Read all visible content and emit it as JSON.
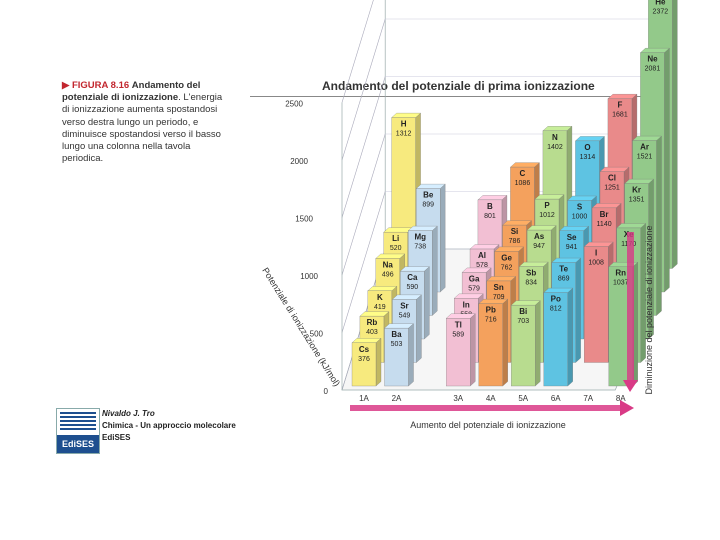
{
  "caption": {
    "figure_label": "FIGURA 8.16",
    "figure_title": "Andamento del potenziale di ionizzazione",
    "figure_body": ". L'energia di ionizzazione aumenta spostandosi verso destra lungo un periodo, e diminuisce spostandosi verso il basso lungo una colonna nella tavola periodica."
  },
  "chart_data": {
    "type": "bar",
    "title": "Andamento del potenziale di prima ionizzazione",
    "zlabel": "Potenziale di ionizzazione (kJ/mol)",
    "zlim": [
      0,
      2500
    ],
    "z_ticks": [
      "0",
      "500",
      "1000",
      "1500",
      "2000",
      "2500"
    ],
    "groups": [
      "1A",
      "2A",
      "3A",
      "4A",
      "5A",
      "6A",
      "7A",
      "8A"
    ],
    "x_axis_label": "Aumento del potenziale di ionizzazione",
    "y_axis_label": "Diminuzione del potenziale di ionizzazione",
    "series": [
      {
        "group": "1A",
        "color": "#f7ea7e",
        "elements": [
          {
            "symbol": "H",
            "value": 1312
          },
          {
            "symbol": "Li",
            "value": 520
          },
          {
            "symbol": "Na",
            "value": 496
          },
          {
            "symbol": "K",
            "value": 419
          },
          {
            "symbol": "Rb",
            "value": 403
          },
          {
            "symbol": "Cs",
            "value": 376
          }
        ]
      },
      {
        "group": "2A",
        "color": "#c6dcee",
        "elements": [
          {
            "symbol": "Be",
            "value": 899
          },
          {
            "symbol": "Mg",
            "value": 738
          },
          {
            "symbol": "Ca",
            "value": 590
          },
          {
            "symbol": "Sr",
            "value": 549
          },
          {
            "symbol": "Ba",
            "value": 503
          }
        ]
      },
      {
        "group": "3A",
        "color": "#f2bfd3",
        "elements": [
          {
            "symbol": "B",
            "value": 801
          },
          {
            "symbol": "Al",
            "value": 578
          },
          {
            "symbol": "Ga",
            "value": 579
          },
          {
            "symbol": "In",
            "value": 558
          },
          {
            "symbol": "Tl",
            "value": 589
          }
        ]
      },
      {
        "group": "4A",
        "color": "#f4a15d",
        "elements": [
          {
            "symbol": "C",
            "value": 1086
          },
          {
            "symbol": "Si",
            "value": 786
          },
          {
            "symbol": "Ge",
            "value": 762
          },
          {
            "symbol": "Sn",
            "value": 709
          },
          {
            "symbol": "Pb",
            "value": 716
          }
        ]
      },
      {
        "group": "5A",
        "color": "#b8dc8f",
        "elements": [
          {
            "symbol": "N",
            "value": 1402
          },
          {
            "symbol": "P",
            "value": 1012
          },
          {
            "symbol": "As",
            "value": 947
          },
          {
            "symbol": "Sb",
            "value": 834
          },
          {
            "symbol": "Bi",
            "value": 703
          }
        ]
      },
      {
        "group": "6A",
        "color": "#5ec3e2",
        "elements": [
          {
            "symbol": "O",
            "value": 1314
          },
          {
            "symbol": "S",
            "value": 1000
          },
          {
            "symbol": "Se",
            "value": 941
          },
          {
            "symbol": "Te",
            "value": 869
          },
          {
            "symbol": "Po",
            "value": 812
          }
        ]
      },
      {
        "group": "7A",
        "color": "#e98a8a",
        "elements": [
          {
            "symbol": "F",
            "value": 1681
          },
          {
            "symbol": "Cl",
            "value": 1251
          },
          {
            "symbol": "Br",
            "value": 1140
          },
          {
            "symbol": "I",
            "value": 1008
          }
        ]
      },
      {
        "group": "8A",
        "color": "#93c98a",
        "elements": [
          {
            "symbol": "He",
            "value": 2372
          },
          {
            "symbol": "Ne",
            "value": 2081
          },
          {
            "symbol": "Ar",
            "value": 1521
          },
          {
            "symbol": "Kr",
            "value": 1351
          },
          {
            "symbol": "Xe",
            "value": 1170
          },
          {
            "symbol": "Rn",
            "value": 1037
          }
        ]
      }
    ],
    "arrow_colors": {
      "x": "#d93a86",
      "y": "#d93a86"
    }
  },
  "publisher": {
    "author": "Nivaldo J. Tro",
    "book": "Chimica - Un approccio molecolare",
    "publisher": "EdiSES",
    "logo_text": "EdiSES"
  }
}
